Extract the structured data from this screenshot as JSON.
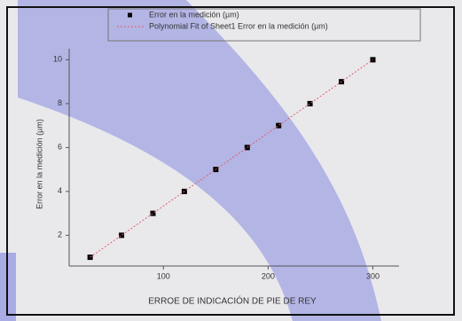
{
  "chart_data": {
    "type": "scatter",
    "x_label": "ERROE DE INDICACIÓN DE PIE DE REY",
    "y_label": "Error en la medición (µm)",
    "series": [
      {
        "name": "Error en la medición (µm)",
        "color": "#000000",
        "kind": "points",
        "x": [
          30,
          60,
          90,
          120,
          150,
          180,
          210,
          240,
          270,
          300
        ],
        "values": [
          1,
          2,
          3,
          4,
          5,
          6,
          7,
          8,
          9,
          10
        ]
      },
      {
        "name": "Polynomial Fit of Sheet1 Error en la medición (µm)",
        "color": "#e0606a",
        "kind": "fit",
        "x": [
          30,
          300
        ],
        "values": [
          1,
          10
        ]
      }
    ],
    "xlim": [
      10,
      325
    ],
    "xticks": [
      100,
      200,
      300
    ],
    "ylim": [
      0.6,
      10.5
    ],
    "yticks": [
      2,
      4,
      6,
      8,
      10
    ]
  }
}
